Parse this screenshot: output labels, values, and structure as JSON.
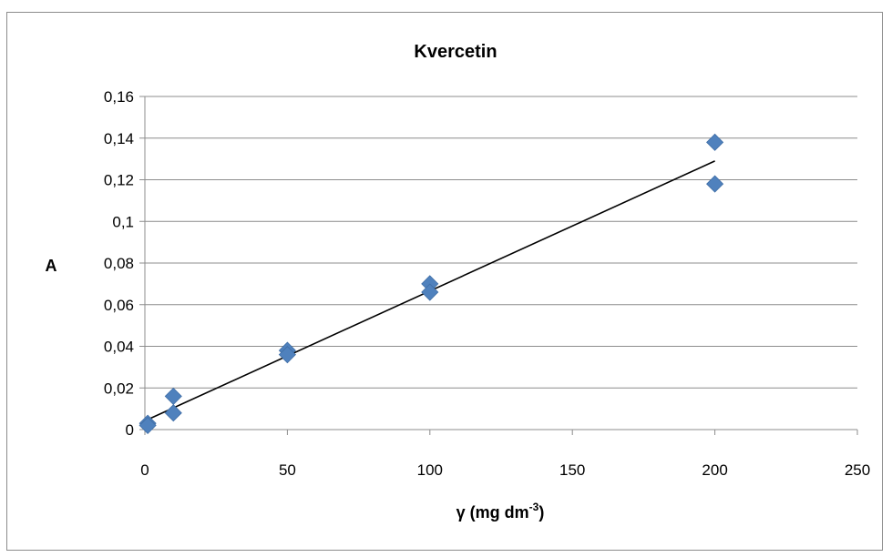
{
  "chart_data": {
    "type": "scatter",
    "title": "Kvercetin",
    "xlabel": "γ (mg dm",
    "xlabel_sup": "-3",
    "xlabel_end": ")",
    "ylabel": "A",
    "xlim": [
      0,
      250
    ],
    "ylim": [
      0,
      0.16
    ],
    "x_ticks": [
      0,
      50,
      100,
      150,
      200,
      250
    ],
    "x_tick_labels": [
      "0",
      "50",
      "100",
      "150",
      "200",
      "250"
    ],
    "y_ticks": [
      0,
      0.02,
      0.04,
      0.06,
      0.08,
      0.1,
      0.12,
      0.14,
      0.16
    ],
    "y_tick_labels": [
      "0",
      "0,02",
      "0,04",
      "0,06",
      "0,08",
      "0,1",
      "0,12",
      "0,14",
      "0,16"
    ],
    "grid": true,
    "legend": "none",
    "series": [
      {
        "marker": "diamond",
        "color": "#4f81bd",
        "points": [
          {
            "x": 1,
            "y": 0.003
          },
          {
            "x": 1,
            "y": 0.002
          },
          {
            "x": 10,
            "y": 0.016
          },
          {
            "x": 10,
            "y": 0.008
          },
          {
            "x": 50,
            "y": 0.038
          },
          {
            "x": 50,
            "y": 0.036
          },
          {
            "x": 100,
            "y": 0.07
          },
          {
            "x": 100,
            "y": 0.066
          },
          {
            "x": 200,
            "y": 0.138
          },
          {
            "x": 200,
            "y": 0.118
          }
        ]
      }
    ],
    "trendline": {
      "type": "linear",
      "color": "#000000",
      "x_start": 1,
      "x_end": 200,
      "y_start": 0.0048,
      "y_end": 0.129
    }
  }
}
